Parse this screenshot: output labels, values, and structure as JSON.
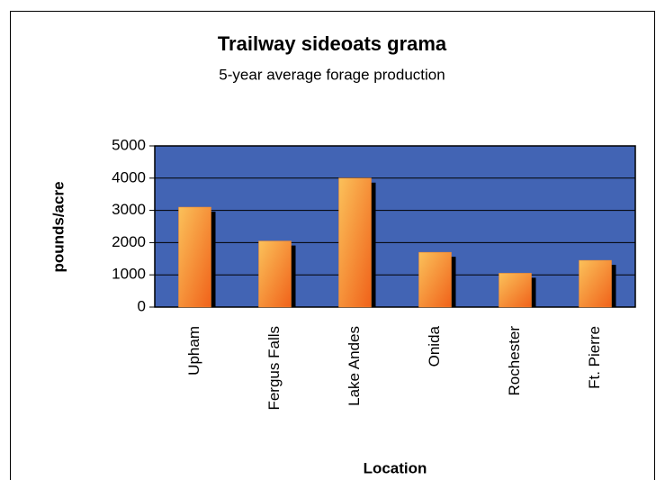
{
  "chart_data": {
    "type": "bar",
    "title": "Trailway sideoats grama",
    "subtitle": "5-year average forage production",
    "x_label": "Location",
    "y_label": "pounds/acre",
    "categories": [
      "Upham",
      "Fergus Falls",
      "Lake Andes",
      "Onida",
      "Rochester",
      "Ft. Pierre"
    ],
    "values": [
      3100,
      2050,
      4000,
      1700,
      1050,
      1450
    ],
    "color": "#f58a2a",
    "ylim": [
      0,
      5000
    ],
    "yticks": [
      0,
      1000,
      2000,
      3000,
      4000,
      5000
    ],
    "grid": true
  }
}
